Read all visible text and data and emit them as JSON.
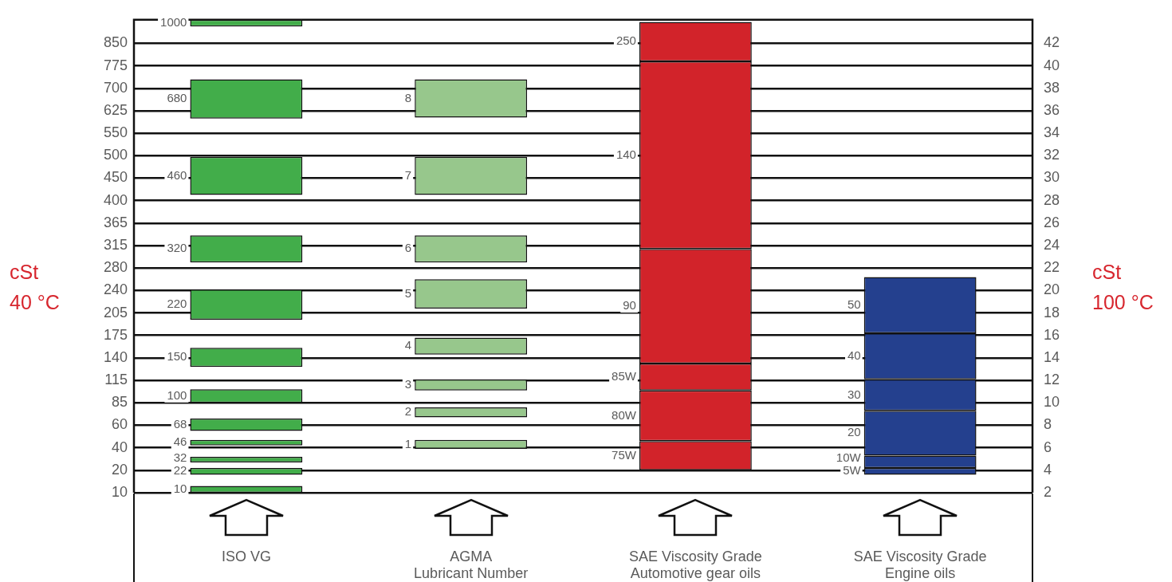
{
  "chart_data": {
    "type": "bar",
    "ylabel": "cSt\n100 °C",
    "y2label": "cSt\n40 °C",
    "categories": [
      "ISO VG",
      "AGMA\nLubricant Number",
      "SAE Viscosity Grade\nAutomotive gear oils",
      "SAE Viscosity Grade\nEngine oils"
    ],
    "ylim": [
      2,
      44.1
    ],
    "yticks": [
      2,
      4,
      6,
      8,
      10,
      12,
      14,
      16,
      18,
      20,
      22,
      24,
      26,
      28,
      30,
      32,
      34,
      36,
      38,
      40,
      42
    ],
    "grid": "y",
    "series": [
      {
        "colors": [
          "#42ad4a",
          "#97c78c",
          "#d2232a",
          "#24408e"
        ],
        "base": [
          2.0,
          5.9,
          4.0,
          3.6
        ],
        "values": [
          0.6,
          0.8,
          2.6,
          0.6
        ]
      },
      {
        "colors": [
          "#42ad4a",
          "#97c78c",
          "#d2232a",
          "#24408e"
        ],
        "base": [
          3.6,
          8.7,
          6.6,
          4.2
        ],
        "values": [
          0.6,
          0.9,
          4.5,
          1.1
        ]
      },
      {
        "colors": [
          "#42ad4a",
          "#97c78c",
          "#d2232a",
          "#24408e"
        ],
        "base": [
          4.7,
          11.1,
          11.1,
          5.3
        ],
        "values": [
          0.5,
          1.0,
          2.4,
          4.0
        ]
      },
      {
        "colors": [
          "#42ad4a",
          "#97c78c",
          "#d2232a",
          "#24408e"
        ],
        "base": [
          6.2,
          14.3,
          13.5,
          9.3
        ],
        "values": [
          0.5,
          1.5,
          10.2,
          2.8
        ]
      },
      {
        "colors": [
          "#42ad4a",
          "#97c78c",
          "#d2232a",
          "#24408e"
        ],
        "base": [
          7.5,
          18.4,
          23.7,
          12.1
        ],
        "values": [
          1.1,
          2.6,
          16.7,
          4.1
        ]
      },
      {
        "colors": [
          "#42ad4a",
          "#97c78c",
          "#d2232a",
          "#24408e"
        ],
        "base": [
          10.0,
          22.5,
          40.4,
          16.2
        ],
        "values": [
          1.2,
          2.4,
          3.5,
          5.0
        ]
      },
      {
        "colors": [
          "#42ad4a",
          "#97c78c",
          null,
          null
        ],
        "base": [
          13.2,
          28.5,
          null,
          null
        ],
        "values": [
          1.7,
          3.4,
          null,
          null
        ]
      },
      {
        "colors": [
          "#42ad4a",
          "#97c78c",
          null,
          null
        ],
        "base": [
          17.4,
          35.4,
          null,
          null
        ],
        "values": [
          2.7,
          3.4,
          null,
          null
        ]
      },
      {
        "colors": [
          "#42ad4a",
          null,
          null,
          null
        ],
        "base": [
          22.5,
          null,
          null,
          null
        ],
        "values": [
          2.4,
          null,
          null,
          null
        ]
      },
      {
        "colors": [
          "#42ad4a",
          null,
          null,
          null
        ],
        "base": [
          28.5,
          null,
          null,
          null
        ],
        "values": [
          3.4,
          null,
          null,
          null
        ]
      },
      {
        "colors": [
          "#42ad4a",
          null,
          null,
          null
        ],
        "base": [
          35.3,
          null,
          null,
          null
        ],
        "values": [
          3.5,
          null,
          null,
          null
        ]
      },
      {
        "colors": [
          "#42ad4a",
          null,
          null,
          null
        ],
        "base": [
          43.5,
          null,
          null,
          null
        ],
        "values": [
          0.6,
          null,
          null,
          null
        ]
      }
    ],
    "annotations": [
      "10",
      "22",
      "32",
      "46",
      "68",
      "100",
      "150",
      "220",
      "320",
      "460",
      "680",
      "1000",
      "1",
      "2",
      "3",
      "4",
      "5",
      "6",
      "7",
      "8",
      "75W",
      "80W",
      "85W",
      "90",
      "140",
      "250",
      "5W",
      "10W",
      "20",
      "30",
      "40",
      "50",
      "10",
      "20",
      "40",
      "60",
      "85",
      "115",
      "140",
      "175",
      "205",
      "240",
      "280",
      "315",
      "365",
      "400",
      "450",
      "500",
      "550",
      "625",
      "700",
      "775",
      "850"
    ]
  }
}
